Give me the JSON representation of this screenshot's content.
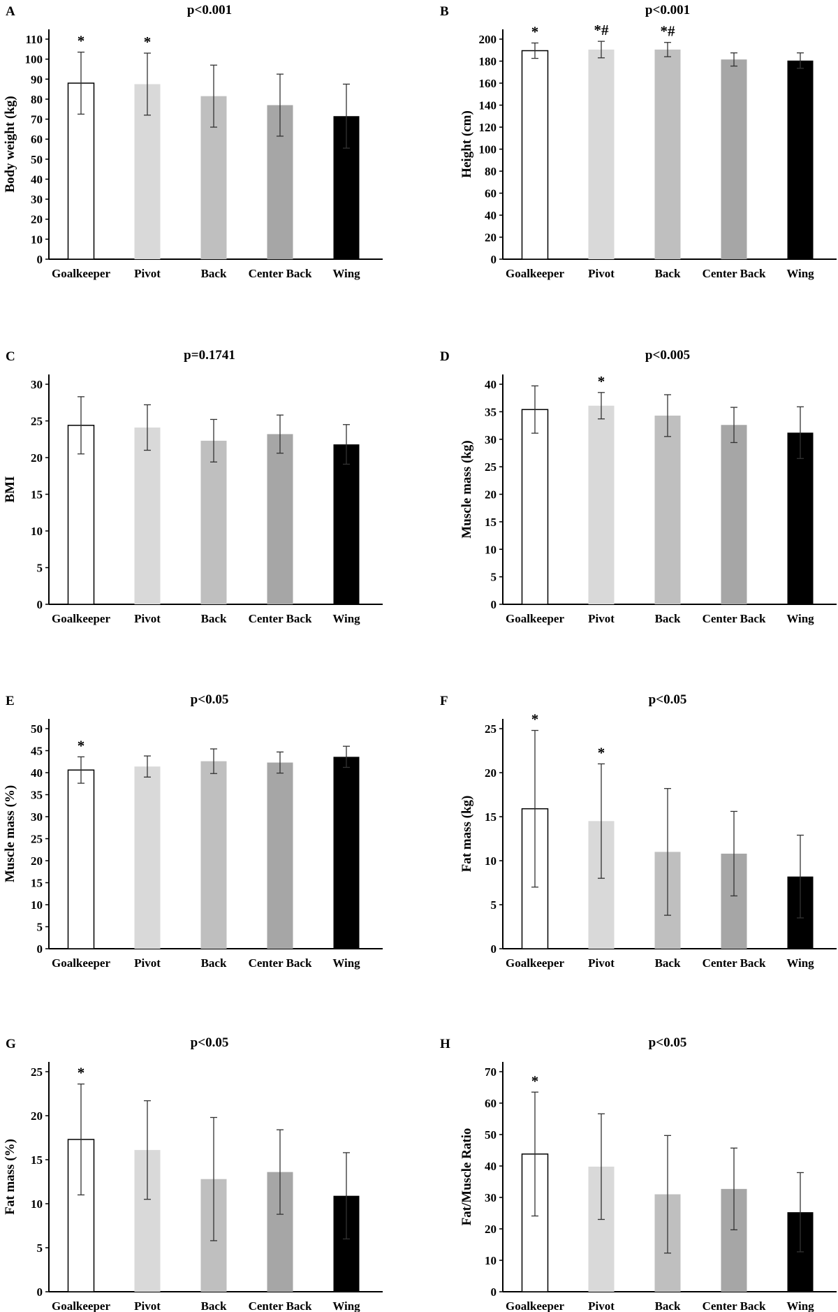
{
  "chart_data": [
    {
      "panel": "A",
      "type": "bar",
      "title": "p<0.001",
      "ylabel": "Body weight (kg)",
      "categories": [
        "Goalkeeper",
        "Pivot",
        "Back",
        "Center Back",
        "Wing"
      ],
      "values": [
        88,
        87.5,
        81.5,
        77,
        71.5
      ],
      "errors": [
        15.5,
        15.5,
        15.5,
        15.5,
        16
      ],
      "annotations": [
        "*",
        "*",
        "",
        "",
        ""
      ],
      "yticks": [
        0,
        10,
        20,
        30,
        40,
        50,
        60,
        70,
        80,
        90,
        100,
        110
      ],
      "ylim": [
        0,
        110
      ]
    },
    {
      "panel": "B",
      "type": "bar",
      "title": "p<0.001",
      "ylabel": "Height (cm)",
      "categories": [
        "Goalkeeper",
        "Pivot",
        "Back",
        "Center Back",
        "Wing"
      ],
      "values": [
        189.5,
        190.5,
        190.5,
        181.5,
        180.5
      ],
      "errors": [
        7,
        7.5,
        6.5,
        6,
        7
      ],
      "annotations": [
        "*",
        "*#",
        "*#",
        "",
        ""
      ],
      "yticks": [
        0,
        20,
        40,
        60,
        80,
        100,
        120,
        140,
        160,
        180,
        200
      ],
      "ylim": [
        0,
        200
      ]
    },
    {
      "panel": "C",
      "type": "bar",
      "title": "p=0.1741",
      "ylabel": "BMI",
      "categories": [
        "Goalkeeper",
        "Pivot",
        "Back",
        "Center Back",
        "Wing"
      ],
      "values": [
        24.4,
        24.1,
        22.3,
        23.2,
        21.8
      ],
      "errors": [
        3.9,
        3.1,
        2.9,
        2.6,
        2.7
      ],
      "annotations": [
        "",
        "",
        "",
        "",
        ""
      ],
      "yticks": [
        0,
        5,
        10,
        15,
        20,
        25,
        30
      ],
      "ylim": [
        0,
        30
      ]
    },
    {
      "panel": "D",
      "type": "bar",
      "title": "p<0.005",
      "ylabel": "Muscle mass (kg)",
      "categories": [
        "Goalkeeper",
        "Pivot",
        "Back",
        "Center Back",
        "Wing"
      ],
      "values": [
        35.4,
        36.1,
        34.3,
        32.6,
        31.2
      ],
      "errors": [
        4.3,
        2.4,
        3.8,
        3.2,
        4.7
      ],
      "annotations": [
        "",
        "*",
        "",
        "",
        ""
      ],
      "yticks": [
        0,
        5,
        10,
        15,
        20,
        25,
        30,
        35,
        40
      ],
      "ylim": [
        0,
        40
      ]
    },
    {
      "panel": "E",
      "type": "bar",
      "title": "p<0.05",
      "ylabel": "Muscle mass (%)",
      "categories": [
        "Goalkeeper",
        "Pivot",
        "Back",
        "Center Back",
        "Wing"
      ],
      "values": [
        40.6,
        41.4,
        42.6,
        42.3,
        43.6
      ],
      "errors": [
        3,
        2.4,
        2.8,
        2.4,
        2.4
      ],
      "annotations": [
        "*",
        "",
        "",
        "",
        ""
      ],
      "yticks": [
        0,
        5,
        10,
        15,
        20,
        25,
        30,
        35,
        40,
        45,
        50
      ],
      "ylim": [
        0,
        50
      ]
    },
    {
      "panel": "F",
      "type": "bar",
      "title": "p<0.05",
      "ylabel": "Fat mass (kg)",
      "categories": [
        "Goalkeeper",
        "Pivot",
        "Back",
        "Center Back",
        "Wing"
      ],
      "values": [
        15.9,
        14.5,
        11,
        10.8,
        8.2
      ],
      "errors": [
        8.9,
        6.5,
        7.2,
        4.8,
        4.7
      ],
      "annotations": [
        "*",
        "*",
        "",
        "",
        ""
      ],
      "yticks": [
        0,
        5,
        10,
        15,
        20,
        25
      ],
      "ylim": [
        0,
        25
      ]
    },
    {
      "panel": "G",
      "type": "bar",
      "title": "p<0.05",
      "ylabel": "Fat mass (%)",
      "categories": [
        "Goalkeeper",
        "Pivot",
        "Back",
        "Center Back",
        "Wing"
      ],
      "values": [
        17.3,
        16.1,
        12.8,
        13.6,
        10.9
      ],
      "errors": [
        6.3,
        5.6,
        7,
        4.8,
        4.9
      ],
      "annotations": [
        "*",
        "",
        "",
        "",
        ""
      ],
      "yticks": [
        0,
        5,
        10,
        15,
        20,
        25
      ],
      "ylim": [
        0,
        25
      ]
    },
    {
      "panel": "H",
      "type": "bar",
      "title": "p<0.05",
      "ylabel": "Fat/Muscle Ratio",
      "categories": [
        "Goalkeeper",
        "Pivot",
        "Back",
        "Center Back",
        "Wing"
      ],
      "values": [
        43.8,
        39.8,
        31,
        32.7,
        25.3
      ],
      "errors": [
        19.7,
        16.8,
        18.7,
        13,
        12.6
      ],
      "annotations": [
        "*",
        "",
        "",
        "",
        ""
      ],
      "yticks": [
        0,
        10,
        20,
        30,
        40,
        50,
        60,
        70
      ],
      "ylim": [
        0,
        70
      ]
    }
  ],
  "colors": [
    "#ffffff",
    "#d9d9d9",
    "#bfbfbf",
    "#a6a6a6",
    "#000000"
  ]
}
